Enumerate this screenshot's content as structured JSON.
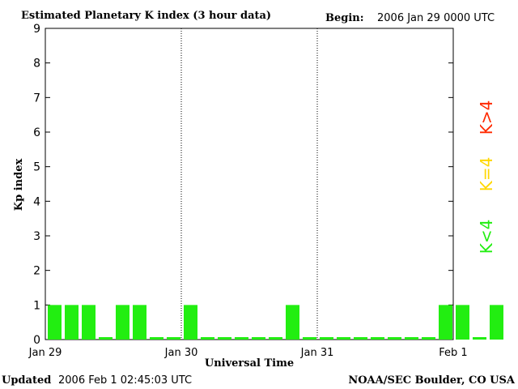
{
  "header": {
    "title": "Estimated Planetary K index (3 hour data)",
    "begin_label": "Begin:",
    "begin_value": "2006 Jan 29 0000 UTC"
  },
  "footer": {
    "updated_label": "Updated",
    "updated_value": "2006 Feb  1 02:45:03 UTC",
    "source": "NOAA/SEC Boulder, CO USA"
  },
  "legend": {
    "items": [
      {
        "label": "K>4",
        "color": "#ff2a00"
      },
      {
        "label": "K=4",
        "color": "#ffd700"
      },
      {
        "label": "K<4",
        "color": "#22ee11"
      }
    ]
  },
  "chart_data": {
    "type": "bar",
    "xlabel": "Universal Time",
    "ylabel": "Kp index",
    "ylim": [
      0,
      9
    ],
    "yticks": [
      "0",
      "1",
      "2",
      "3",
      "4",
      "5",
      "6",
      "7",
      "8",
      "9"
    ],
    "xticks": [
      "Jan 29",
      "Jan 30",
      "Jan 31",
      "Feb 1"
    ],
    "day_separators": [
      "Jan 30",
      "Jan 31"
    ],
    "grid": false,
    "bar_color": "#22ee11",
    "values": [
      1,
      1,
      1,
      0,
      1,
      1,
      0,
      0,
      1,
      0,
      0,
      0,
      0,
      0,
      1,
      0,
      0,
      0,
      0,
      0,
      0,
      0,
      0,
      1,
      1,
      0,
      1
    ]
  }
}
